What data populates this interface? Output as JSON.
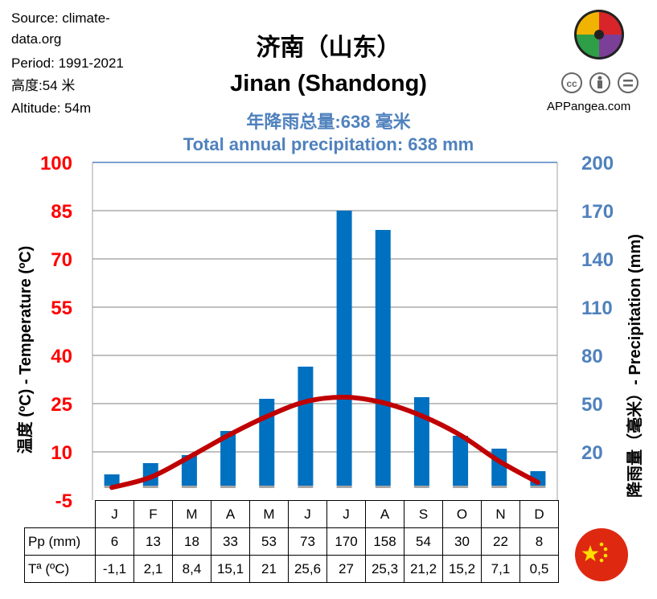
{
  "meta": {
    "source": "Source: climate-data.org",
    "period": "Period: 1991-2021",
    "altitude_cn": "高度:54 米",
    "altitude_en": "Altitude: 54m"
  },
  "titles": {
    "city_cn": "济南（山东）",
    "city_en": "Jinan (Shandong)",
    "annual_cn": "年降雨总量:638 毫米",
    "annual_en": "Total annual precipitation: 638 mm"
  },
  "brand": {
    "site": "APPangea.com"
  },
  "table": {
    "pp_label": "Pp (mm)",
    "t_label": "Tª (ºC)",
    "pp_values": [
      "6",
      "13",
      "18",
      "33",
      "53",
      "73",
      "170",
      "158",
      "54",
      "30",
      "22",
      "8"
    ],
    "t_values": [
      "-1,1",
      "2,1",
      "8,4",
      "15,1",
      "21",
      "25,6",
      "27",
      "25,3",
      "21,2",
      "15,2",
      "7,1",
      "0,5"
    ]
  },
  "colors": {
    "temp_axis": "#ff0000",
    "precip_axis": "#4f81bd",
    "bar": "#0070c0",
    "line": "#c00000"
  },
  "chart_data": {
    "type": "bar",
    "title": "Jinan (Shandong)",
    "categories": [
      "J",
      "F",
      "M",
      "A",
      "M",
      "J",
      "J",
      "A",
      "S",
      "O",
      "N",
      "D"
    ],
    "y_left_label": "温度 (ºC) - Temperature (ºC)",
    "y_right_label": "降雨量（毫米）- Precipitation (mm)",
    "y_left_ticks": [
      "100",
      "85",
      "70",
      "55",
      "40",
      "25",
      "10",
      "-5"
    ],
    "y_right_ticks": [
      "200",
      "170",
      "140",
      "110",
      "80",
      "50",
      "20"
    ],
    "y_left_range": [
      -5,
      100
    ],
    "y_right_range": [
      -10,
      200
    ],
    "grid": true,
    "series": [
      {
        "type": "bar",
        "axis": "right",
        "values": [
          6,
          13,
          18,
          33,
          53,
          73,
          170,
          158,
          54,
          30,
          22,
          8
        ]
      },
      {
        "type": "line",
        "axis": "left",
        "values": [
          -1.1,
          2.1,
          8.4,
          15.1,
          21,
          25.6,
          27,
          25.3,
          21.2,
          15.2,
          7.1,
          0.5
        ]
      }
    ]
  }
}
